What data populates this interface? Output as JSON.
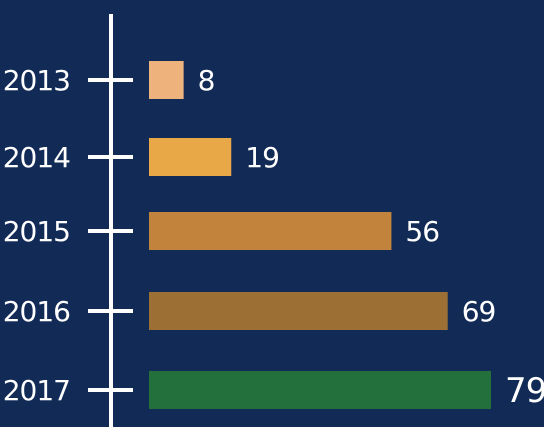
{
  "chart_data": {
    "type": "bar",
    "orientation": "horizontal",
    "categories": [
      "2013",
      "2014",
      "2015",
      "2016",
      "2017"
    ],
    "values": [
      8,
      19,
      56,
      69,
      79
    ],
    "value_labels": [
      "8",
      "19",
      "56",
      "69",
      "79"
    ],
    "colors": [
      "#eeb27d",
      "#e9a848",
      "#c2843d",
      "#9c7034",
      "#23703c"
    ],
    "title": "",
    "xlabel": "",
    "ylabel": "",
    "xlim": [
      0,
      79
    ],
    "grid": false,
    "legend": "none"
  },
  "colors": {
    "background": "#112a56",
    "axis": "#ffffff",
    "text": "#ffffff"
  }
}
